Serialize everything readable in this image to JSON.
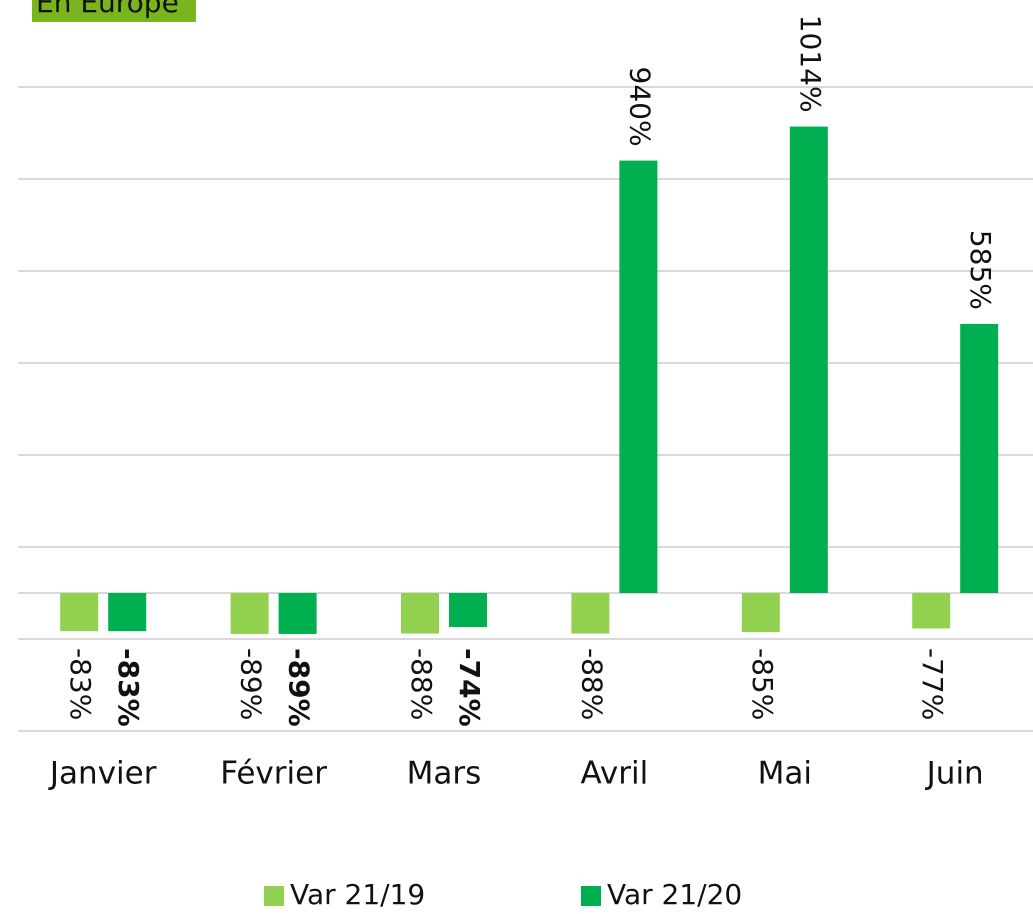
{
  "chart_data": {
    "type": "bar",
    "title": "En Europe",
    "categories": [
      "Janvier",
      "Février",
      "Mars",
      "Avril",
      "Mai",
      "Juin"
    ],
    "series": [
      {
        "name": "Var 21/19",
        "color": "#92d050",
        "values": [
          -83,
          -89,
          -88,
          -88,
          -85,
          -77
        ],
        "value_labels": [
          "-83%",
          "-89%",
          "-88%",
          "-88%",
          "-85%",
          "-77%"
        ]
      },
      {
        "name": "Var 21/20",
        "color": "#00b050",
        "values": [
          -83,
          -89,
          -74,
          940,
          1014,
          585
        ],
        "value_labels": [
          "-83%",
          "-89%",
          "-74%",
          "940%",
          "1014%",
          "585%"
        ]
      }
    ],
    "ylim": [
      -300,
      1100
    ],
    "yticks": [
      -300,
      -100,
      100,
      300,
      500,
      700,
      900,
      1100
    ],
    "grid": true
  }
}
